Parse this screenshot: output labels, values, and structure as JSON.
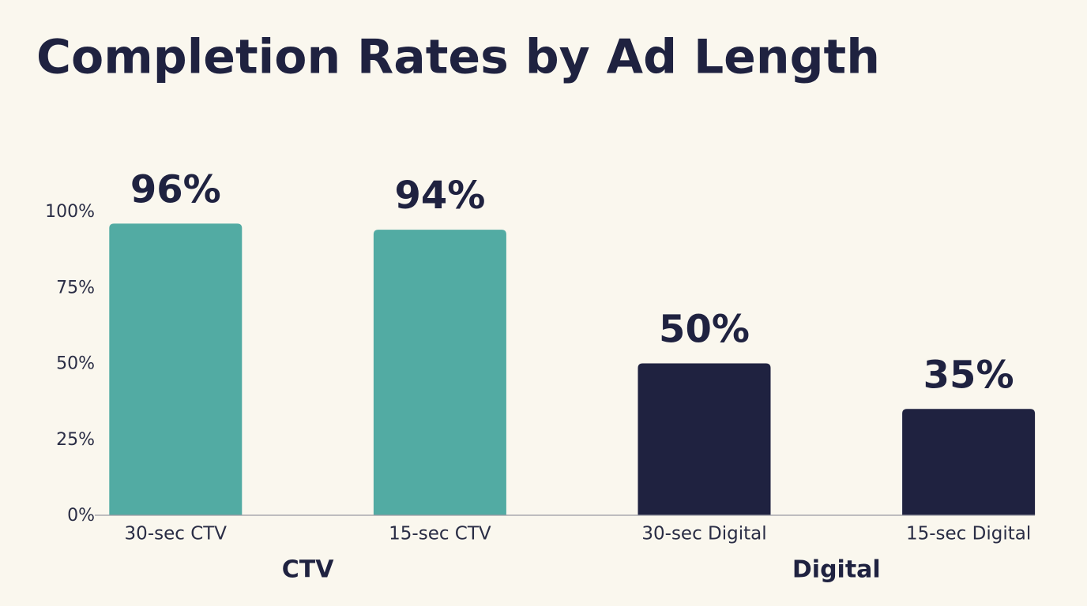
{
  "chart_data": {
    "type": "bar",
    "title": "Completion Rates by Ad Length",
    "categories": [
      "30-sec CTV",
      "15-sec CTV",
      "30-sec Digital",
      "15-sec Digital"
    ],
    "series": [
      {
        "name": "CTV",
        "color": "#52aba3",
        "values": [
          96,
          94,
          null,
          null
        ],
        "value_labels": [
          "96%",
          "94%",
          null,
          null
        ]
      },
      {
        "name": "Digital",
        "color": "#1f2240",
        "values": [
          null,
          null,
          50,
          35
        ],
        "value_labels": [
          null,
          null,
          "50%",
          "35%"
        ]
      }
    ],
    "ylim": [
      0,
      100
    ],
    "yticks": [
      {
        "value": 0,
        "label": "0%"
      },
      {
        "value": 25,
        "label": "25%"
      },
      {
        "value": 50,
        "label": "50%"
      },
      {
        "value": 75,
        "label": "75%"
      },
      {
        "value": 100,
        "label": "100%"
      }
    ],
    "grid": false
  }
}
